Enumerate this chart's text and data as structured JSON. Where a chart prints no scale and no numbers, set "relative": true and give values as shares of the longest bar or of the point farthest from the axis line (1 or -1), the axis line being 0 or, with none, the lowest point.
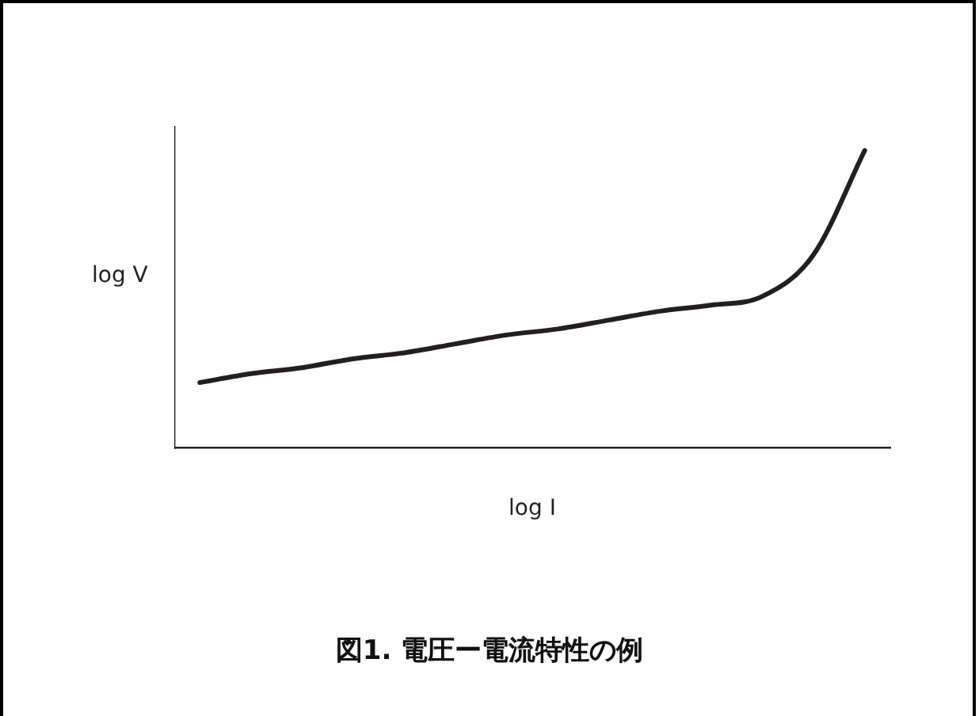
{
  "chart_data": {
    "type": "line",
    "title": "図1. 電圧ー電流特性の例",
    "xlabel": "log I",
    "ylabel": "log V",
    "relative": true,
    "grid": false,
    "legend": false,
    "marker": "none",
    "line_style": "solid",
    "categories": [
      null,
      null,
      null,
      null,
      null,
      null,
      null,
      null,
      null,
      null,
      null,
      null,
      null,
      null
    ],
    "series": [
      {
        "color": "#231f20",
        "values": [
          0.22,
          0.25,
          0.27,
          0.3,
          0.32,
          0.35,
          0.38,
          0.4,
          0.43,
          0.46,
          0.48,
          0.51,
          0.65,
          1
        ]
      }
    ]
  }
}
